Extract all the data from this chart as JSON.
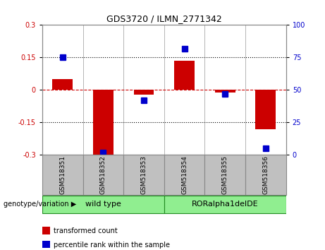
{
  "title": "GDS3720 / ILMN_2771342",
  "categories": [
    "GSM518351",
    "GSM518352",
    "GSM518353",
    "GSM518354",
    "GSM518355",
    "GSM518356"
  ],
  "red_values": [
    0.05,
    -0.3,
    -0.02,
    0.135,
    -0.01,
    -0.18
  ],
  "blue_values": [
    75,
    2,
    42,
    82,
    47,
    5
  ],
  "ylim_left": [
    -0.3,
    0.3
  ],
  "ylim_right": [
    0,
    100
  ],
  "yticks_left": [
    -0.3,
    -0.15,
    0.0,
    0.15,
    0.3
  ],
  "ytick_labels_left": [
    "-0.3",
    "-0.15",
    "0",
    "0.15",
    "0.3"
  ],
  "yticks_right": [
    0,
    25,
    50,
    75,
    100
  ],
  "ytick_labels_right": [
    "0",
    "25",
    "50",
    "75",
    "100"
  ],
  "red_color": "#CC0000",
  "blue_color": "#0000CC",
  "dashed_line_color": "#CC0000",
  "dotted_line_color": "#000000",
  "groups": [
    {
      "label": "wild type",
      "span": [
        0,
        2
      ]
    },
    {
      "label": "RORalpha1delDE",
      "span": [
        3,
        5
      ]
    }
  ],
  "group_color": "#90EE90",
  "group_border_color": "#228B22",
  "label_bg_color": "#C0C0C0",
  "label_border_color": "#888888",
  "group_label_prefix": "genotype/variation",
  "legend_items": [
    {
      "label": "transformed count",
      "color": "#CC0000"
    },
    {
      "label": "percentile rank within the sample",
      "color": "#0000CC"
    }
  ],
  "bar_width": 0.5,
  "marker_size": 6,
  "bg_color": "#FFFFFF"
}
